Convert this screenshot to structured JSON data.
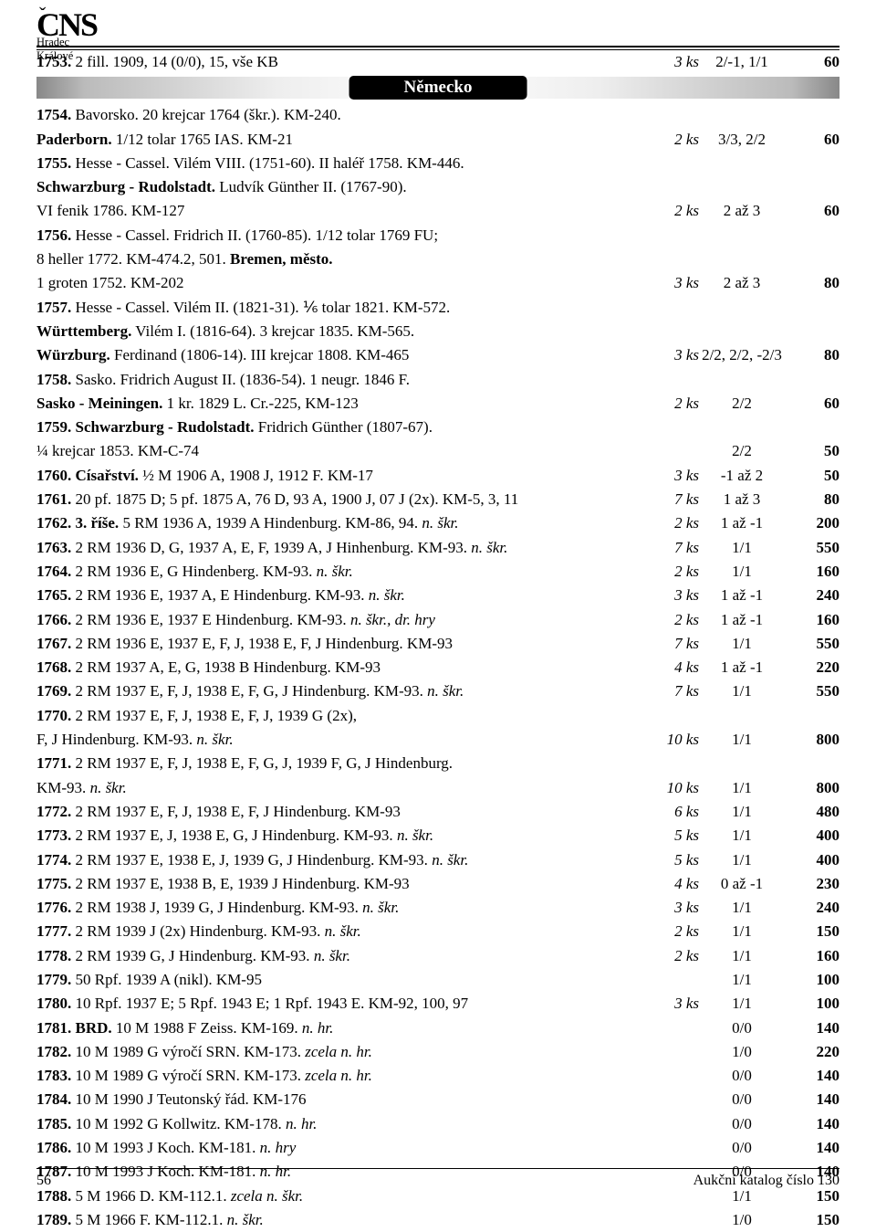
{
  "logo": {
    "initials": "CNS",
    "caron": "ˇ",
    "subtitle": "Hradec Králové"
  },
  "section": {
    "title": "Německo"
  },
  "footer": {
    "page": "56",
    "right": "Aukční katalog číslo 130"
  },
  "colors": {
    "bar_dark": "#888",
    "bar_light": "#fff",
    "pill_bg": "#000",
    "pill_fg": "#fff"
  },
  "lots": [
    {
      "n": "1753.",
      "d": "2 fill. 1909, 14 (0/0), 15, vše KB",
      "ks": "3 ks",
      "gr": "2/-1, 1/1",
      "pr": "60"
    },
    {
      "section": true
    },
    {
      "n": "1754.",
      "d": "Bavorsko. 20 krejcar 1764 (škr.). KM-240.",
      "ks": "",
      "gr": "",
      "pr": ""
    },
    {
      "n": "",
      "d": "<b>Paderborn.</b> 1/12 tolar 1765 IAS. KM-21",
      "ks": "2 ks",
      "gr": "3/3, 2/2",
      "pr": "60"
    },
    {
      "n": "1755.",
      "d": "Hesse - Cassel. Vilém VIII. (1751-60). II haléř 1758. KM-446.",
      "ks": "",
      "gr": "",
      "pr": ""
    },
    {
      "n": "",
      "d": "<b>Schwarzburg - Rudolstadt.</b> Ludvík Günther II. (1767-90).",
      "ks": "",
      "gr": "",
      "pr": ""
    },
    {
      "n": "",
      "d": "VI fenik 1786. KM-127",
      "ks": "2 ks",
      "gr": "2 až 3",
      "pr": "60"
    },
    {
      "n": "1756.",
      "d": "Hesse - Cassel. Fridrich II. (1760-85). 1/12 tolar 1769 FU;",
      "ks": "",
      "gr": "",
      "pr": ""
    },
    {
      "n": "",
      "d": "8 heller 1772. KM-474.2, 501. <b>Bremen, město.</b>",
      "ks": "",
      "gr": "",
      "pr": ""
    },
    {
      "n": "",
      "d": "1 groten 1752. KM-202",
      "ks": "3 ks",
      "gr": "2 až 3",
      "pr": "80"
    },
    {
      "n": "1757.",
      "d": "Hesse - Cassel. Vilém II. (1821-31). ⅙ tolar 1821. KM-572.",
      "ks": "",
      "gr": "",
      "pr": ""
    },
    {
      "n": "",
      "d": "<b>Württemberg.</b> Vilém I. (1816-64). 3 krejcar 1835. KM-565.",
      "ks": "",
      "gr": "",
      "pr": ""
    },
    {
      "n": "",
      "d": "<b>Würzburg.</b> Ferdinand (1806-14). III krejcar 1808. KM-465",
      "ks": "3 ks",
      "gr": "2/2, 2/2, -2/3",
      "pr": "80"
    },
    {
      "n": "1758.",
      "d": "Sasko. Fridrich August II. (1836-54). 1 neugr. 1846 F.",
      "ks": "",
      "gr": "",
      "pr": ""
    },
    {
      "n": "",
      "d": "<b>Sasko - Meiningen.</b> 1 kr. 1829 L. Cr.-225, KM-123",
      "ks": "2 ks",
      "gr": "2/2",
      "pr": "60"
    },
    {
      "n": "1759.",
      "d": "<b>Schwarzburg - Rudolstadt.</b> Fridrich Günther (1807-67).",
      "ks": "",
      "gr": "",
      "pr": ""
    },
    {
      "n": "",
      "d": "¼ krejcar 1853. KM-C-74",
      "ks": "",
      "gr": "2/2",
      "pr": "50"
    },
    {
      "n": "1760.",
      "d": "<b>Císařství.</b> ½ M 1906 A, 1908 J, 1912 F. KM-17",
      "ks": "3 ks",
      "gr": "-1 až 2",
      "pr": "50"
    },
    {
      "n": "1761.",
      "d": "20 pf. 1875 D; 5 pf. 1875 A, 76 D, 93 A, 1900 J, 07 J (2x). KM-5, 3, 11",
      "ks": "7 ks",
      "gr": "1 až 3",
      "pr": "80"
    },
    {
      "n": "1762.",
      "d": "<b>3. říše.</b> 5 RM 1936 A, 1939 A Hindenburg. KM-86, 94. <i>n. škr.</i>",
      "ks": "2 ks",
      "gr": "1 až -1",
      "pr": "200"
    },
    {
      "n": "1763.",
      "d": "2 RM 1936 D, G, 1937 A, E, F, 1939 A, J Hinhenburg. KM-93. <i>n. škr.</i>",
      "ks": "7 ks",
      "gr": "1/1",
      "pr": "550"
    },
    {
      "n": "1764.",
      "d": "2 RM 1936 E, G Hindenberg. KM-93. <i>n. škr.</i>",
      "ks": "2 ks",
      "gr": "1/1",
      "pr": "160"
    },
    {
      "n": "1765.",
      "d": "2 RM 1936 E, 1937 A, E Hindenburg. KM-93. <i>n. škr.</i>",
      "ks": "3 ks",
      "gr": "1 až -1",
      "pr": "240"
    },
    {
      "n": "1766.",
      "d": "2 RM 1936 E, 1937 E Hindenburg. KM-93. <i>n. škr., dr. hry</i>",
      "ks": "2 ks",
      "gr": "1 až -1",
      "pr": "160"
    },
    {
      "n": "1767.",
      "d": "2 RM 1936 E, 1937 E, F, J, 1938 E, F, J Hindenburg. KM-93",
      "ks": "7 ks",
      "gr": "1/1",
      "pr": "550"
    },
    {
      "n": "1768.",
      "d": "2 RM 1937 A, E, G, 1938 B Hindenburg. KM-93",
      "ks": "4 ks",
      "gr": "1 až -1",
      "pr": "220"
    },
    {
      "n": "1769.",
      "d": "2 RM 1937 E, F, J, 1938 E, F, G, J Hindenburg. KM-93. <i>n. škr.</i>",
      "ks": "7 ks",
      "gr": "1/1",
      "pr": "550"
    },
    {
      "n": "1770.",
      "d": "2 RM 1937 E, F, J, 1938 E, F, J, 1939 G (2x),",
      "ks": "",
      "gr": "",
      "pr": ""
    },
    {
      "n": "",
      "d": "F, J Hindenburg. KM-93. <i>n. škr.</i>",
      "ks": "10 ks",
      "gr": "1/1",
      "pr": "800"
    },
    {
      "n": "1771.",
      "d": "2 RM 1937 E, F, J, 1938 E, F, G, J, 1939 F, G, J Hindenburg.",
      "ks": "",
      "gr": "",
      "pr": ""
    },
    {
      "n": "",
      "d": "KM-93. <i>n. škr.</i>",
      "ks": "10 ks",
      "gr": "1/1",
      "pr": "800"
    },
    {
      "n": "1772.",
      "d": "2 RM 1937 E, F, J, 1938 E, F, J Hindenburg. KM-93",
      "ks": "6 ks",
      "gr": "1/1",
      "pr": "480"
    },
    {
      "n": "1773.",
      "d": "2 RM 1937 E, J, 1938 E, G, J Hindenburg. KM-93. <i>n. škr.</i>",
      "ks": "5 ks",
      "gr": "1/1",
      "pr": "400"
    },
    {
      "n": "1774.",
      "d": "2 RM 1937 E, 1938 E, J, 1939 G, J Hindenburg. KM-93. <i>n. škr.</i>",
      "ks": "5 ks",
      "gr": "1/1",
      "pr": "400"
    },
    {
      "n": "1775.",
      "d": "2 RM 1937 E, 1938 B, E, 1939 J Hindenburg. KM-93",
      "ks": "4 ks",
      "gr": "0 až -1",
      "pr": "230"
    },
    {
      "n": "1776.",
      "d": "2 RM 1938 J, 1939 G, J Hindenburg. KM-93. <i>n. škr.</i>",
      "ks": "3 ks",
      "gr": "1/1",
      "pr": "240"
    },
    {
      "n": "1777.",
      "d": "2 RM 1939 J (2x) Hindenburg. KM-93. <i>n. škr.</i>",
      "ks": "2 ks",
      "gr": "1/1",
      "pr": "150"
    },
    {
      "n": "1778.",
      "d": "2 RM 1939 G, J Hindenburg. KM-93. <i>n. škr.</i>",
      "ks": "2 ks",
      "gr": "1/1",
      "pr": "160"
    },
    {
      "n": "1779.",
      "d": "50 Rpf. 1939 A (nikl). KM-95",
      "ks": "",
      "gr": "1/1",
      "pr": "100"
    },
    {
      "n": "1780.",
      "d": "10 Rpf. 1937 E; 5 Rpf. 1943 E; 1 Rpf. 1943 E. KM-92, 100, 97",
      "ks": "3 ks",
      "gr": "1/1",
      "pr": "100"
    },
    {
      "n": "1781.",
      "d": "<b>BRD.</b> 10 M 1988 F Zeiss. KM-169. <i>n. hr.</i>",
      "ks": "",
      "gr": "0/0",
      "pr": "140"
    },
    {
      "n": "1782.",
      "d": "10 M 1989 G výročí SRN. KM-173. <i>zcela n. hr.</i>",
      "ks": "",
      "gr": "1/0",
      "pr": "220"
    },
    {
      "n": "1783.",
      "d": "10 M 1989 G výročí SRN. KM-173. <i>zcela n. hr.</i>",
      "ks": "",
      "gr": "0/0",
      "pr": "140"
    },
    {
      "n": "1784.",
      "d": "10 M 1990 J Teutonský řád. KM-176",
      "ks": "",
      "gr": "0/0",
      "pr": "140"
    },
    {
      "n": "1785.",
      "d": "10 M 1992 G Kollwitz. KM-178. <i>n. hr.</i>",
      "ks": "",
      "gr": "0/0",
      "pr": "140"
    },
    {
      "n": "1786.",
      "d": "10 M 1993 J Koch. KM-181. <i>n. hry</i>",
      "ks": "",
      "gr": "0/0",
      "pr": "140"
    },
    {
      "n": "1787.",
      "d": "10 M 1993 J Koch. KM-181. <i>n. hr.</i>",
      "ks": "",
      "gr": "0/0",
      "pr": "140"
    },
    {
      "n": "1788.",
      "d": "5 M 1966 D. KM-112.1. <i>zcela n. škr.</i>",
      "ks": "",
      "gr": "1/1",
      "pr": "150"
    },
    {
      "n": "1789.",
      "d": "5 M 1966 F. KM-112.1. <i>n. škr.</i>",
      "ks": "",
      "gr": "1/0",
      "pr": "150"
    }
  ]
}
